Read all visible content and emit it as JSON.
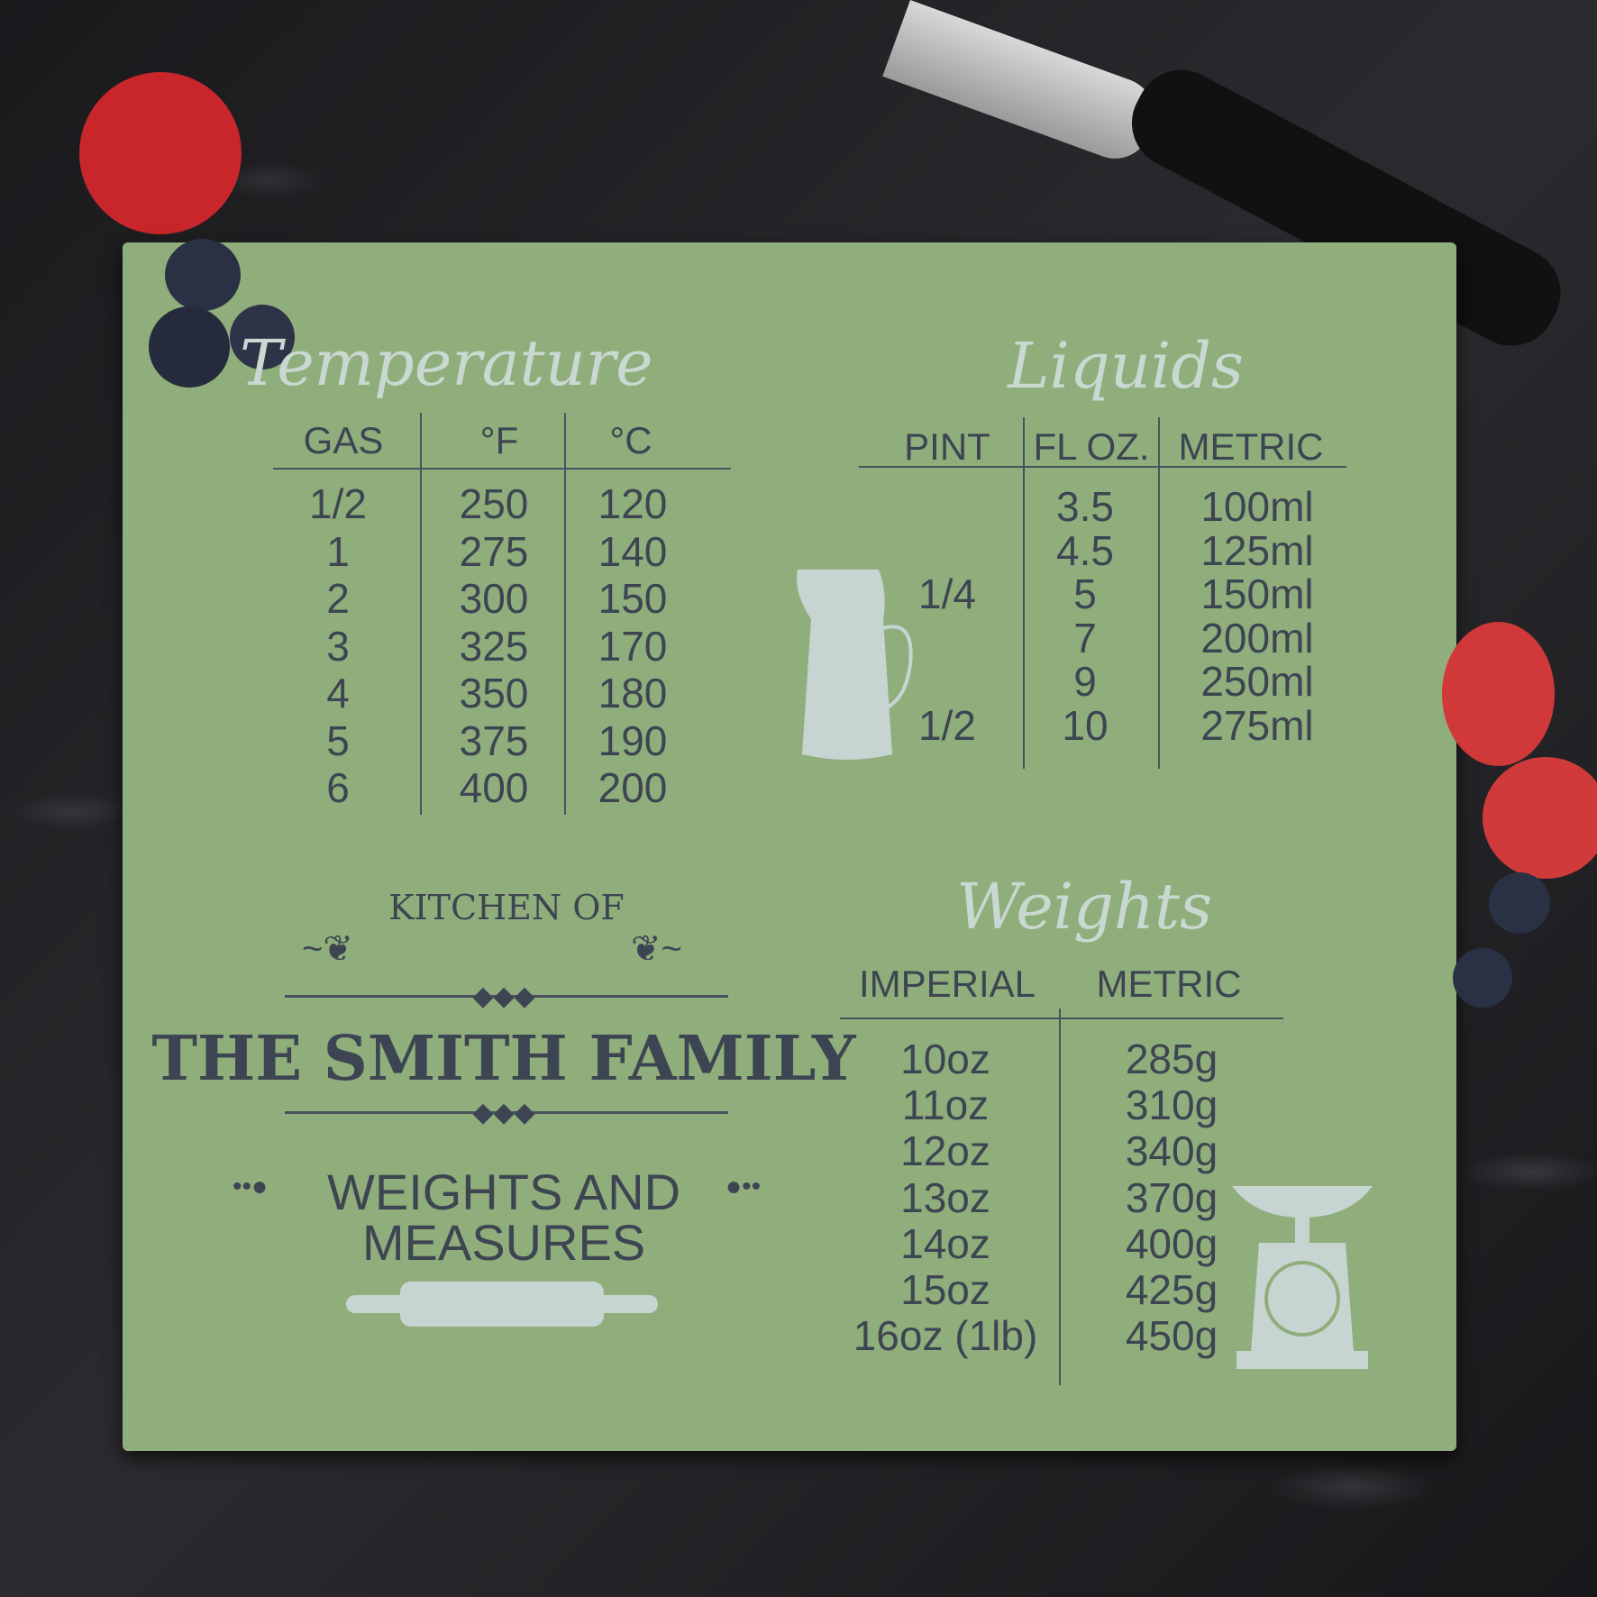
{
  "temperature": {
    "title": "Temperature",
    "headers": [
      "GAS",
      "°F",
      "°C"
    ],
    "rows": [
      [
        "1/2",
        "250",
        "120"
      ],
      [
        "1",
        "275",
        "140"
      ],
      [
        "2",
        "300",
        "150"
      ],
      [
        "3",
        "325",
        "170"
      ],
      [
        "4",
        "350",
        "180"
      ],
      [
        "5",
        "375",
        "190"
      ],
      [
        "6",
        "400",
        "200"
      ]
    ]
  },
  "liquids": {
    "title": "Liquids",
    "headers": [
      "PINT",
      "FL OZ.",
      "METRIC"
    ],
    "rows": [
      [
        "",
        "3.5",
        "100ml"
      ],
      [
        "",
        "4.5",
        "125ml"
      ],
      [
        "1/4",
        "5",
        "150ml"
      ],
      [
        "",
        "7",
        "200ml"
      ],
      [
        "",
        "9",
        "250ml"
      ],
      [
        "1/2",
        "10",
        "275ml"
      ]
    ]
  },
  "weights": {
    "title": "Weights",
    "headers": [
      "IMPERIAL",
      "METRIC"
    ],
    "rows": [
      [
        "10oz",
        "285g"
      ],
      [
        "11oz",
        "310g"
      ],
      [
        "12oz",
        "340g"
      ],
      [
        "13oz",
        "370g"
      ],
      [
        "14oz",
        "400g"
      ],
      [
        "15oz",
        "425g"
      ],
      [
        "16oz (1lb)",
        "450g"
      ]
    ]
  },
  "banner": {
    "kitchen_of": "KITCHEN OF",
    "family": "THE SMITH FAMILY",
    "subtitle_line1": "WEIGHTS AND",
    "subtitle_line2": "MEASURES"
  },
  "colors": {
    "board": "#8fae7b",
    "text": "#3e4552",
    "light": "#c9d8d0"
  }
}
